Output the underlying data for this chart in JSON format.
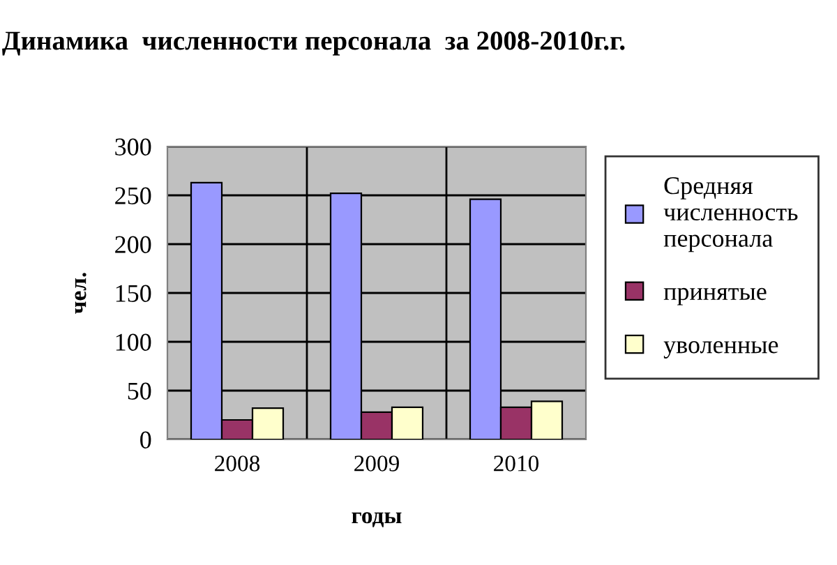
{
  "chart_data": {
    "type": "bar",
    "title": "Динамика  численности персонала  за 2008-2010г.г.",
    "xlabel": "годы",
    "ylabel": "чел.",
    "categories": [
      "2008",
      "2009",
      "2010"
    ],
    "series": [
      {
        "name": "Средняя численность персонала",
        "color": "#9999ff",
        "values": [
          263,
          252,
          246
        ]
      },
      {
        "name": "принятые",
        "color": "#993366",
        "values": [
          20,
          28,
          33
        ]
      },
      {
        "name": "уволенные",
        "color": "#ffffcc",
        "values": [
          32,
          33,
          39
        ]
      }
    ],
    "ylim": [
      0,
      300
    ],
    "yticks": [
      0,
      50,
      100,
      150,
      200,
      250,
      300
    ],
    "grid": true,
    "legend": "right"
  }
}
